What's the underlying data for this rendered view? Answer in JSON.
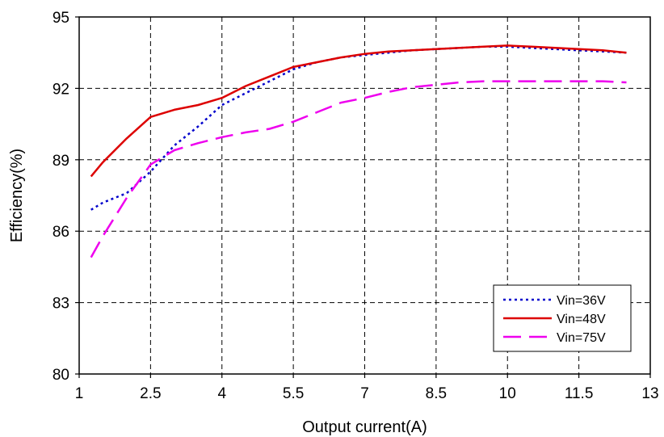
{
  "chart_data": {
    "type": "line",
    "title": "",
    "xlabel": "Output current(A)",
    "ylabel": "Efficiency(%)",
    "xlim": [
      1,
      13
    ],
    "ylim": [
      80,
      95
    ],
    "xticks": [
      "1",
      "2.5",
      "4",
      "5.5",
      "7",
      "8.5",
      "10",
      "11.5",
      "13"
    ],
    "yticks": [
      "80",
      "83",
      "86",
      "89",
      "92",
      "95"
    ],
    "grid": true,
    "legend_position": "bottom-right",
    "series": [
      {
        "name": "Vin=36V",
        "color": "#0000cc",
        "style": "dotted",
        "x": [
          1.25,
          1.5,
          2.0,
          2.5,
          3.0,
          3.5,
          4.0,
          4.5,
          5.0,
          5.5,
          6.0,
          6.5,
          7.0,
          7.5,
          8.0,
          8.5,
          9.0,
          9.5,
          10.0,
          10.5,
          11.0,
          11.5,
          12.0,
          12.5
        ],
        "y": [
          86.9,
          87.2,
          87.6,
          88.5,
          89.6,
          90.4,
          91.3,
          91.8,
          92.3,
          92.8,
          93.1,
          93.3,
          93.4,
          93.5,
          93.6,
          93.65,
          93.7,
          93.75,
          93.75,
          93.7,
          93.65,
          93.6,
          93.55,
          93.5
        ]
      },
      {
        "name": "Vin=48V",
        "color": "#dd0000",
        "style": "solid",
        "x": [
          1.25,
          1.5,
          2.0,
          2.5,
          3.0,
          3.5,
          4.0,
          4.5,
          5.0,
          5.5,
          6.0,
          6.5,
          7.0,
          7.5,
          8.0,
          8.5,
          9.0,
          9.5,
          10.0,
          10.5,
          11.0,
          11.5,
          12.0,
          12.5
        ],
        "y": [
          88.3,
          88.9,
          89.9,
          90.8,
          91.1,
          91.3,
          91.6,
          92.1,
          92.5,
          92.9,
          93.1,
          93.3,
          93.45,
          93.55,
          93.6,
          93.65,
          93.7,
          93.75,
          93.8,
          93.75,
          93.7,
          93.65,
          93.6,
          93.5
        ]
      },
      {
        "name": "Vin=75V",
        "color": "#ee00ee",
        "style": "dashed",
        "x": [
          1.25,
          1.5,
          2.0,
          2.5,
          3.0,
          3.5,
          4.0,
          4.5,
          5.0,
          5.5,
          6.0,
          6.5,
          7.0,
          7.5,
          8.0,
          8.5,
          9.0,
          9.5,
          10.0,
          10.5,
          11.0,
          11.5,
          12.0,
          12.5
        ],
        "y": [
          84.9,
          85.8,
          87.4,
          88.8,
          89.4,
          89.7,
          89.95,
          90.15,
          90.3,
          90.6,
          91.0,
          91.4,
          91.6,
          91.85,
          92.05,
          92.15,
          92.25,
          92.3,
          92.3,
          92.3,
          92.3,
          92.3,
          92.3,
          92.25
        ]
      }
    ]
  }
}
